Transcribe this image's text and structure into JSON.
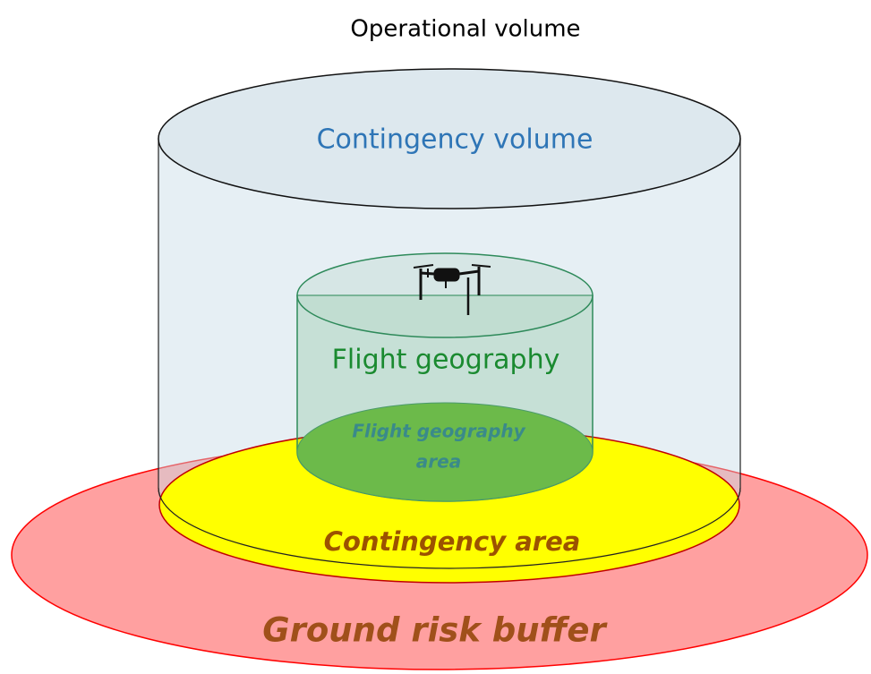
{
  "title": "Operational volume",
  "volumes": {
    "contingency_volume": "Contingency volume",
    "flight_geography": "Flight geography"
  },
  "areas": {
    "flight_geography_area": [
      "Flight geography",
      "area"
    ],
    "contingency_area": "Contingency area",
    "ground_risk_buffer": "Ground risk buffer"
  }
}
